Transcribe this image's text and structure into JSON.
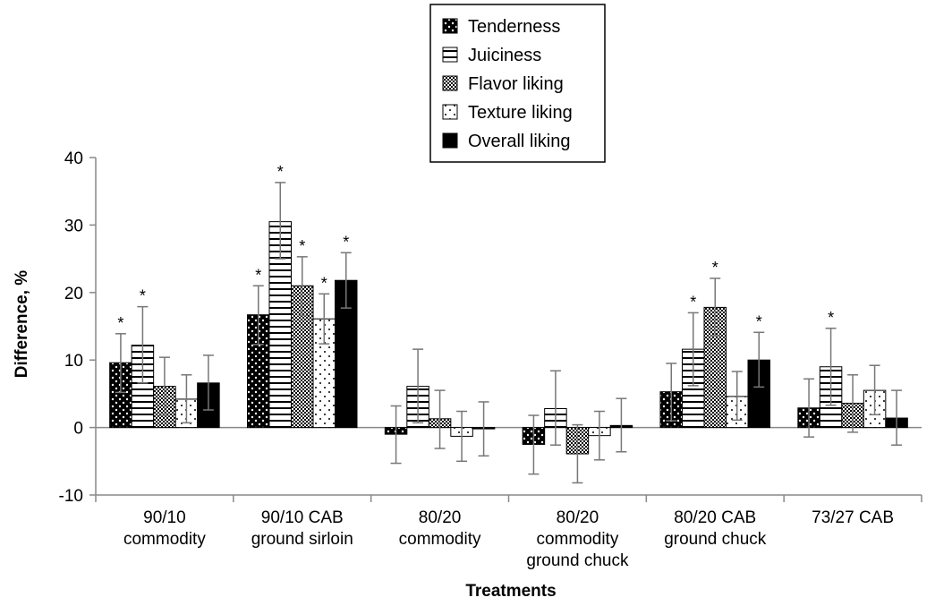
{
  "chart_data": {
    "type": "bar",
    "xlabel": "Treatments",
    "ylabel": "Difference, %",
    "ylim": [
      -10,
      40
    ],
    "yticks": [
      -10,
      0,
      10,
      20,
      30,
      40
    ],
    "legend_position": "top-center",
    "categories": [
      [
        "90/10",
        "commodity"
      ],
      [
        "90/10 CAB",
        "ground sirloin"
      ],
      [
        "80/20",
        "commodity"
      ],
      [
        "80/20",
        "commodity",
        "ground chuck"
      ],
      [
        "80/20 CAB",
        "ground chuck"
      ],
      [
        "73/27 CAB"
      ]
    ],
    "series": [
      {
        "name": "Tenderness",
        "pattern": "dotted-black",
        "values": [
          9.6,
          16.7,
          -1.0,
          -2.5,
          5.3,
          2.9
        ],
        "err_low": [
          5.2,
          12.3,
          -5.3,
          -6.9,
          1.0,
          -1.4
        ],
        "err_high": [
          13.9,
          21.0,
          3.2,
          1.8,
          9.5,
          7.2
        ],
        "significant": [
          true,
          true,
          false,
          false,
          false,
          false
        ]
      },
      {
        "name": "Juiciness",
        "pattern": "horizontal-lines",
        "values": [
          12.2,
          30.5,
          6.1,
          2.8,
          11.6,
          9.0
        ],
        "err_low": [
          6.6,
          25.0,
          0.7,
          -2.6,
          6.2,
          3.3
        ],
        "err_high": [
          17.9,
          36.3,
          11.6,
          8.4,
          17.0,
          14.7
        ],
        "significant": [
          true,
          true,
          false,
          false,
          true,
          true
        ]
      },
      {
        "name": "Flavor liking",
        "pattern": "checker",
        "values": [
          6.1,
          21.0,
          1.3,
          -3.9,
          17.8,
          3.6
        ],
        "err_low": [
          1.8,
          16.6,
          -3.1,
          -8.2,
          13.6,
          -0.7
        ],
        "err_high": [
          10.4,
          25.3,
          5.5,
          0.4,
          22.1,
          7.8
        ],
        "significant": [
          false,
          true,
          false,
          false,
          true,
          false
        ]
      },
      {
        "name": "Texture liking",
        "pattern": "sparse-dots",
        "values": [
          4.2,
          16.1,
          -1.3,
          -1.2,
          4.6,
          5.5
        ],
        "err_low": [
          0.7,
          12.4,
          -5.0,
          -4.8,
          1.1,
          1.9
        ],
        "err_high": [
          7.8,
          19.8,
          2.4,
          2.4,
          8.3,
          9.2
        ],
        "significant": [
          false,
          true,
          false,
          false,
          false,
          false
        ]
      },
      {
        "name": "Overall liking",
        "pattern": "solid-black",
        "values": [
          6.6,
          21.8,
          -0.2,
          0.3,
          10.0,
          1.4
        ],
        "err_low": [
          2.6,
          17.7,
          -4.2,
          -3.6,
          6.0,
          -2.6
        ],
        "err_high": [
          10.7,
          25.9,
          3.8,
          4.3,
          14.1,
          5.5
        ],
        "significant": [
          false,
          true,
          false,
          false,
          true,
          false
        ]
      }
    ],
    "significance_marker": "*",
    "colors": {
      "bar_outline": "#000000",
      "error_bar": "#777777",
      "axis": "#888888"
    }
  }
}
